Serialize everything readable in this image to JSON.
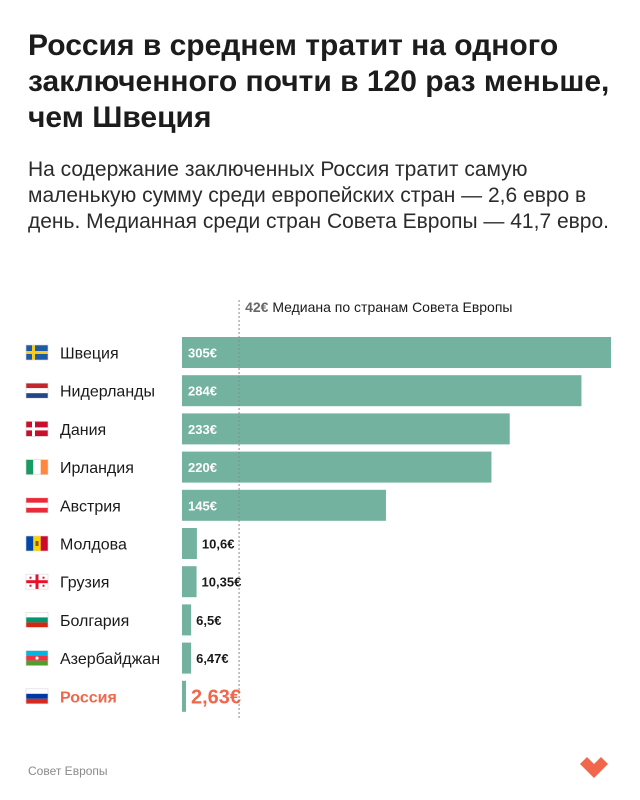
{
  "header": {
    "title": "Россия в среднем тратит на одного заключенного почти в 120 раз меньше, чем Швеция",
    "subtitle": "На содержание заключенных Россия тратит самую маленькую сумму среди европейских стран — 2,6 евро в день. Медианная среди стран Совета Европы — 41,7 евро."
  },
  "footer": {
    "source": "Совет Европы",
    "logo_icon": "heart-logo-icon"
  },
  "colors": {
    "bar": "#72b29e",
    "highlight": "#f0674b",
    "text": "#1a1a1a",
    "median_line": "#8a8a8a"
  },
  "chart_data": {
    "type": "bar",
    "orientation": "horizontal",
    "categories": [
      "Швеция",
      "Нидерланды",
      "Дания",
      "Ирландия",
      "Австрия",
      "Молдова",
      "Грузия",
      "Болгария",
      "Азербайджан",
      "Россия"
    ],
    "values": [
      305,
      284,
      233,
      220,
      145,
      10.6,
      10.35,
      6.5,
      6.47,
      2.63
    ],
    "value_labels": [
      "305€",
      "284€",
      "233€",
      "220€",
      "145€",
      "10,6€",
      "10,35€",
      "6,5€",
      "6,47€",
      "2,63€"
    ],
    "highlight": "Россия",
    "flag_icons": [
      "sweden-flag-icon",
      "netherlands-flag-icon",
      "denmark-flag-icon",
      "ireland-flag-icon",
      "austria-flag-icon",
      "moldova-flag-icon",
      "georgia-flag-icon",
      "bulgaria-flag-icon",
      "azerbaijan-flag-icon",
      "russia-flag-icon"
    ],
    "reference_line": {
      "value": 42,
      "value_label": "42€",
      "label": "Медиана по странам Совета Европы"
    },
    "xlim": [
      0,
      305
    ],
    "grid": false,
    "legend": "none"
  }
}
